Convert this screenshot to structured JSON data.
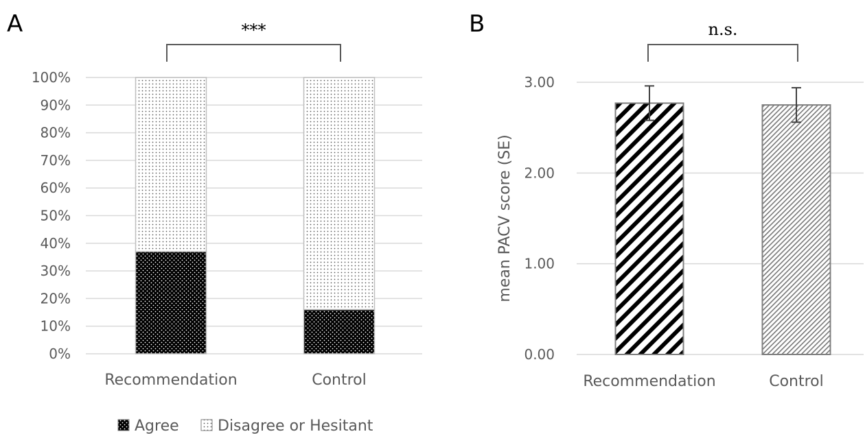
{
  "chart_data": [
    {
      "panel_label": "A",
      "type": "bar",
      "stacked": true,
      "categories": [
        "Recommendation",
        "Control"
      ],
      "series": [
        {
          "name": "Agree",
          "values": [
            37,
            16
          ]
        },
        {
          "name": "Disagree or Hesitant",
          "values": [
            63,
            84
          ]
        }
      ],
      "ylim": [
        0,
        100
      ],
      "yticks": [
        "0%",
        "10%",
        "20%",
        "30%",
        "40%",
        "50%",
        "60%",
        "70%",
        "80%",
        "90%",
        "100%"
      ],
      "ytick_values": [
        0,
        10,
        20,
        30,
        40,
        50,
        60,
        70,
        80,
        90,
        100
      ],
      "significance": "***",
      "grid": true,
      "legend": "bottom"
    },
    {
      "panel_label": "B",
      "type": "bar",
      "categories": [
        "Recommendation",
        "Control"
      ],
      "values": [
        2.77,
        2.75
      ],
      "error": [
        0.19,
        0.19
      ],
      "ylabel": "mean PACV score (SE)",
      "ylim": [
        0,
        3
      ],
      "yticks": [
        "0.00",
        "1.00",
        "2.00",
        "3.00"
      ],
      "ytick_values": [
        0,
        1,
        2,
        3
      ],
      "significance": "n.s.",
      "grid": true
    }
  ]
}
